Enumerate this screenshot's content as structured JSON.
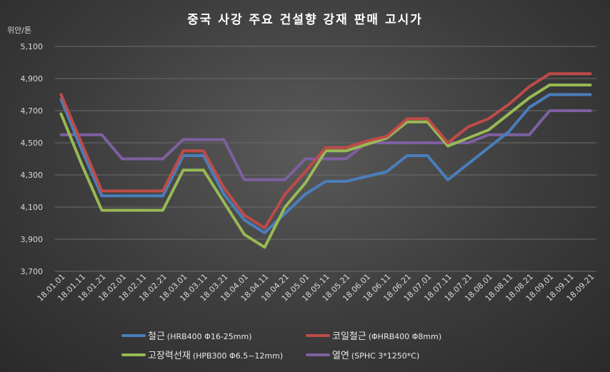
{
  "chart_data": {
    "type": "line",
    "title": "중국 사강 주요 건설향 강재 판매 고시가",
    "ylabel": "위안/톤",
    "xlabel": "",
    "ylim": [
      3700,
      5100
    ],
    "yticks": [
      "3,700",
      "3,900",
      "4,100",
      "4,300",
      "4,500",
      "4,700",
      "4,900",
      "5,100"
    ],
    "ytick_values": [
      3700,
      3900,
      4100,
      4300,
      4500,
      4700,
      4900,
      5100
    ],
    "grid": true,
    "legend_position": "bottom",
    "categories": [
      "18.01.01",
      "18.01.11",
      "18.01.21",
      "18.02.01",
      "18.02.11",
      "18.02.21",
      "18.03.01",
      "18.03.11",
      "18.03.21",
      "18.04.01",
      "18.04.11",
      "18.04.21",
      "18.05.01",
      "18.05.11",
      "18.05.21",
      "18.06.01",
      "18.06.11",
      "18.06.21",
      "18.07.01",
      "18.07.11",
      "18.07.21",
      "18.08.01",
      "18.08.11",
      "18.08.21",
      "18.09.01",
      "18.09.11",
      "18.09.21"
    ],
    "series": [
      {
        "name": "철근",
        "spec": "(HRB400  Φ16-25mm)",
        "color": "#4a7ebb",
        "values": [
          4770,
          4460,
          4170,
          4170,
          4170,
          4170,
          4420,
          4420,
          4180,
          4020,
          3940,
          4060,
          4180,
          4260,
          4260,
          4290,
          4320,
          4420,
          4420,
          4270,
          4370,
          4470,
          4570,
          4720,
          4800,
          4800,
          4800
        ]
      },
      {
        "name": "코일철근",
        "spec": "(ΦHRB400  Φ8mm)",
        "color": "#be4b48",
        "values": [
          4800,
          4500,
          4200,
          4200,
          4200,
          4200,
          4450,
          4450,
          4220,
          4050,
          3970,
          4180,
          4320,
          4470,
          4470,
          4510,
          4540,
          4650,
          4650,
          4500,
          4600,
          4650,
          4740,
          4850,
          4930,
          4930,
          4930
        ]
      },
      {
        "name": "고장력선재",
        "spec": "(HPB300  Φ6.5~12mm)",
        "color": "#98b954",
        "values": [
          4680,
          4370,
          4080,
          4080,
          4080,
          4080,
          4330,
          4330,
          4130,
          3930,
          3850,
          4100,
          4250,
          4450,
          4450,
          4490,
          4530,
          4630,
          4630,
          4480,
          4530,
          4580,
          4680,
          4780,
          4860,
          4860,
          4860
        ]
      },
      {
        "name": "열연",
        "spec": "(SPHC 3*1250*C)",
        "color": "#7d60a0",
        "values": [
          4550,
          4550,
          4550,
          4400,
          4400,
          4400,
          4520,
          4520,
          4520,
          4270,
          4270,
          4270,
          4400,
          4400,
          4400,
          4500,
          4500,
          4500,
          4500,
          4500,
          4500,
          4550,
          4550,
          4550,
          4700,
          4700,
          4700
        ]
      }
    ]
  }
}
